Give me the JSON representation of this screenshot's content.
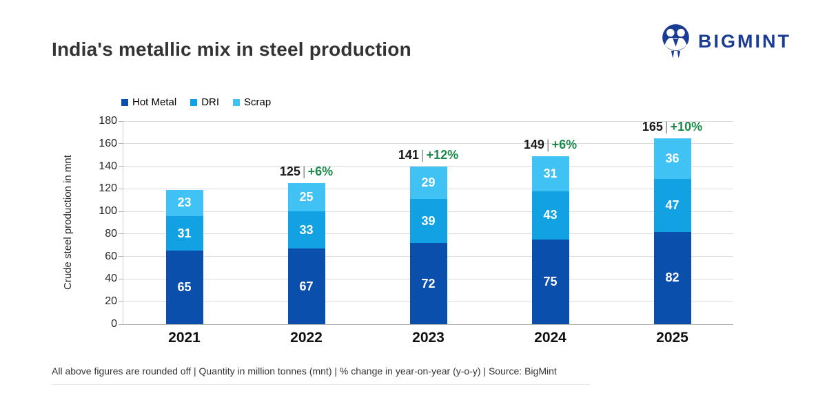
{
  "header": {
    "title": "India's metallic mix in steel production",
    "brand": "BIGMINT",
    "brand_color": "#1b3c94"
  },
  "chart_data": {
    "type": "bar",
    "stacked": true,
    "categories": [
      "2021",
      "2022",
      "2023",
      "2024",
      "2025"
    ],
    "series": [
      {
        "name": "Hot Metal",
        "color": "#0b4fad",
        "values": [
          65,
          67,
          72,
          75,
          82
        ]
      },
      {
        "name": "DRI",
        "color": "#12a1e3",
        "values": [
          31,
          33,
          39,
          43,
          47
        ]
      },
      {
        "name": "Scrap",
        "color": "#40c2f4",
        "values": [
          23,
          25,
          29,
          31,
          36
        ]
      }
    ],
    "annotations": [
      {
        "category": "2021",
        "total": "",
        "pct": ""
      },
      {
        "category": "2022",
        "total": "125",
        "pct": "+6%"
      },
      {
        "category": "2023",
        "total": "141",
        "pct": "+12%"
      },
      {
        "category": "2024",
        "total": "149",
        "pct": "+6%"
      },
      {
        "category": "2025",
        "total": "165",
        "pct": "+10%"
      }
    ],
    "annotation_divider": "|",
    "annotation_pct_color": "#1b8a4b",
    "ylabel": "Crude steel production in mnt",
    "xlabel": "",
    "ylim": [
      0,
      180
    ],
    "ytick_step": 20,
    "grid": true,
    "legend_position": "top-left"
  },
  "footnote": "All above figures are rounded off | Quantity in million tonnes (mnt) | % change in year-on-year (y-o-y) | Source: BigMint"
}
